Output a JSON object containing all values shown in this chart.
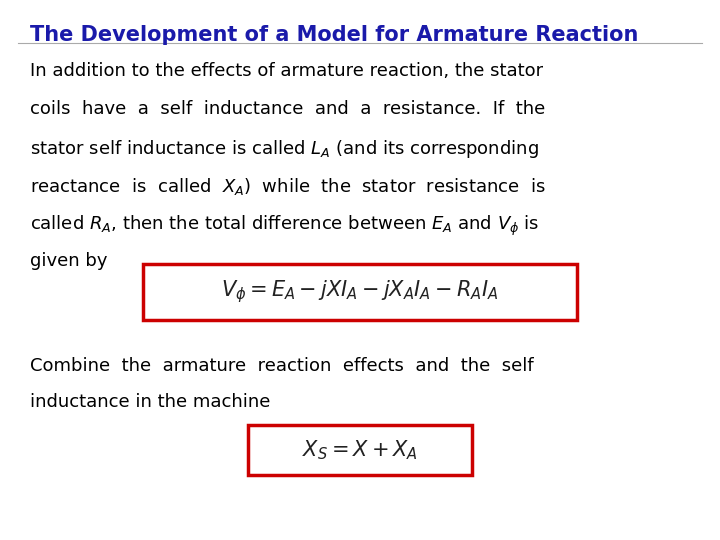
{
  "title": "The Development of a Model for Armature Reaction",
  "title_color": "#1a1aaa",
  "title_fontsize": 15,
  "bg_color": "#ffffff",
  "body_text_lines": [
    "In addition to the effects of armature reaction, the stator",
    "coils  have  a  self  inductance  and  a  resistance.  If  the",
    "stator self inductance is called $L_A$ (and its corresponding",
    "reactance  is  called  $X_A$)  while  the  stator  resistance  is",
    "called $R_A$, then the total difference between $E_A$ and $V_\\phi$ is",
    "given by"
  ],
  "body_fontsize": 13,
  "body_color": "#000000",
  "formula1": "$V_{\\phi} = E_A - jXI_A - jX_AI_A - R_AI_A$",
  "formula2": "$X_S = X + X_A$",
  "formula_fontsize": 15,
  "box_color": "#cc0000",
  "combine_text": [
    "Combine  the  armature  reaction  effects  and  the  self",
    "inductance in the machine"
  ]
}
